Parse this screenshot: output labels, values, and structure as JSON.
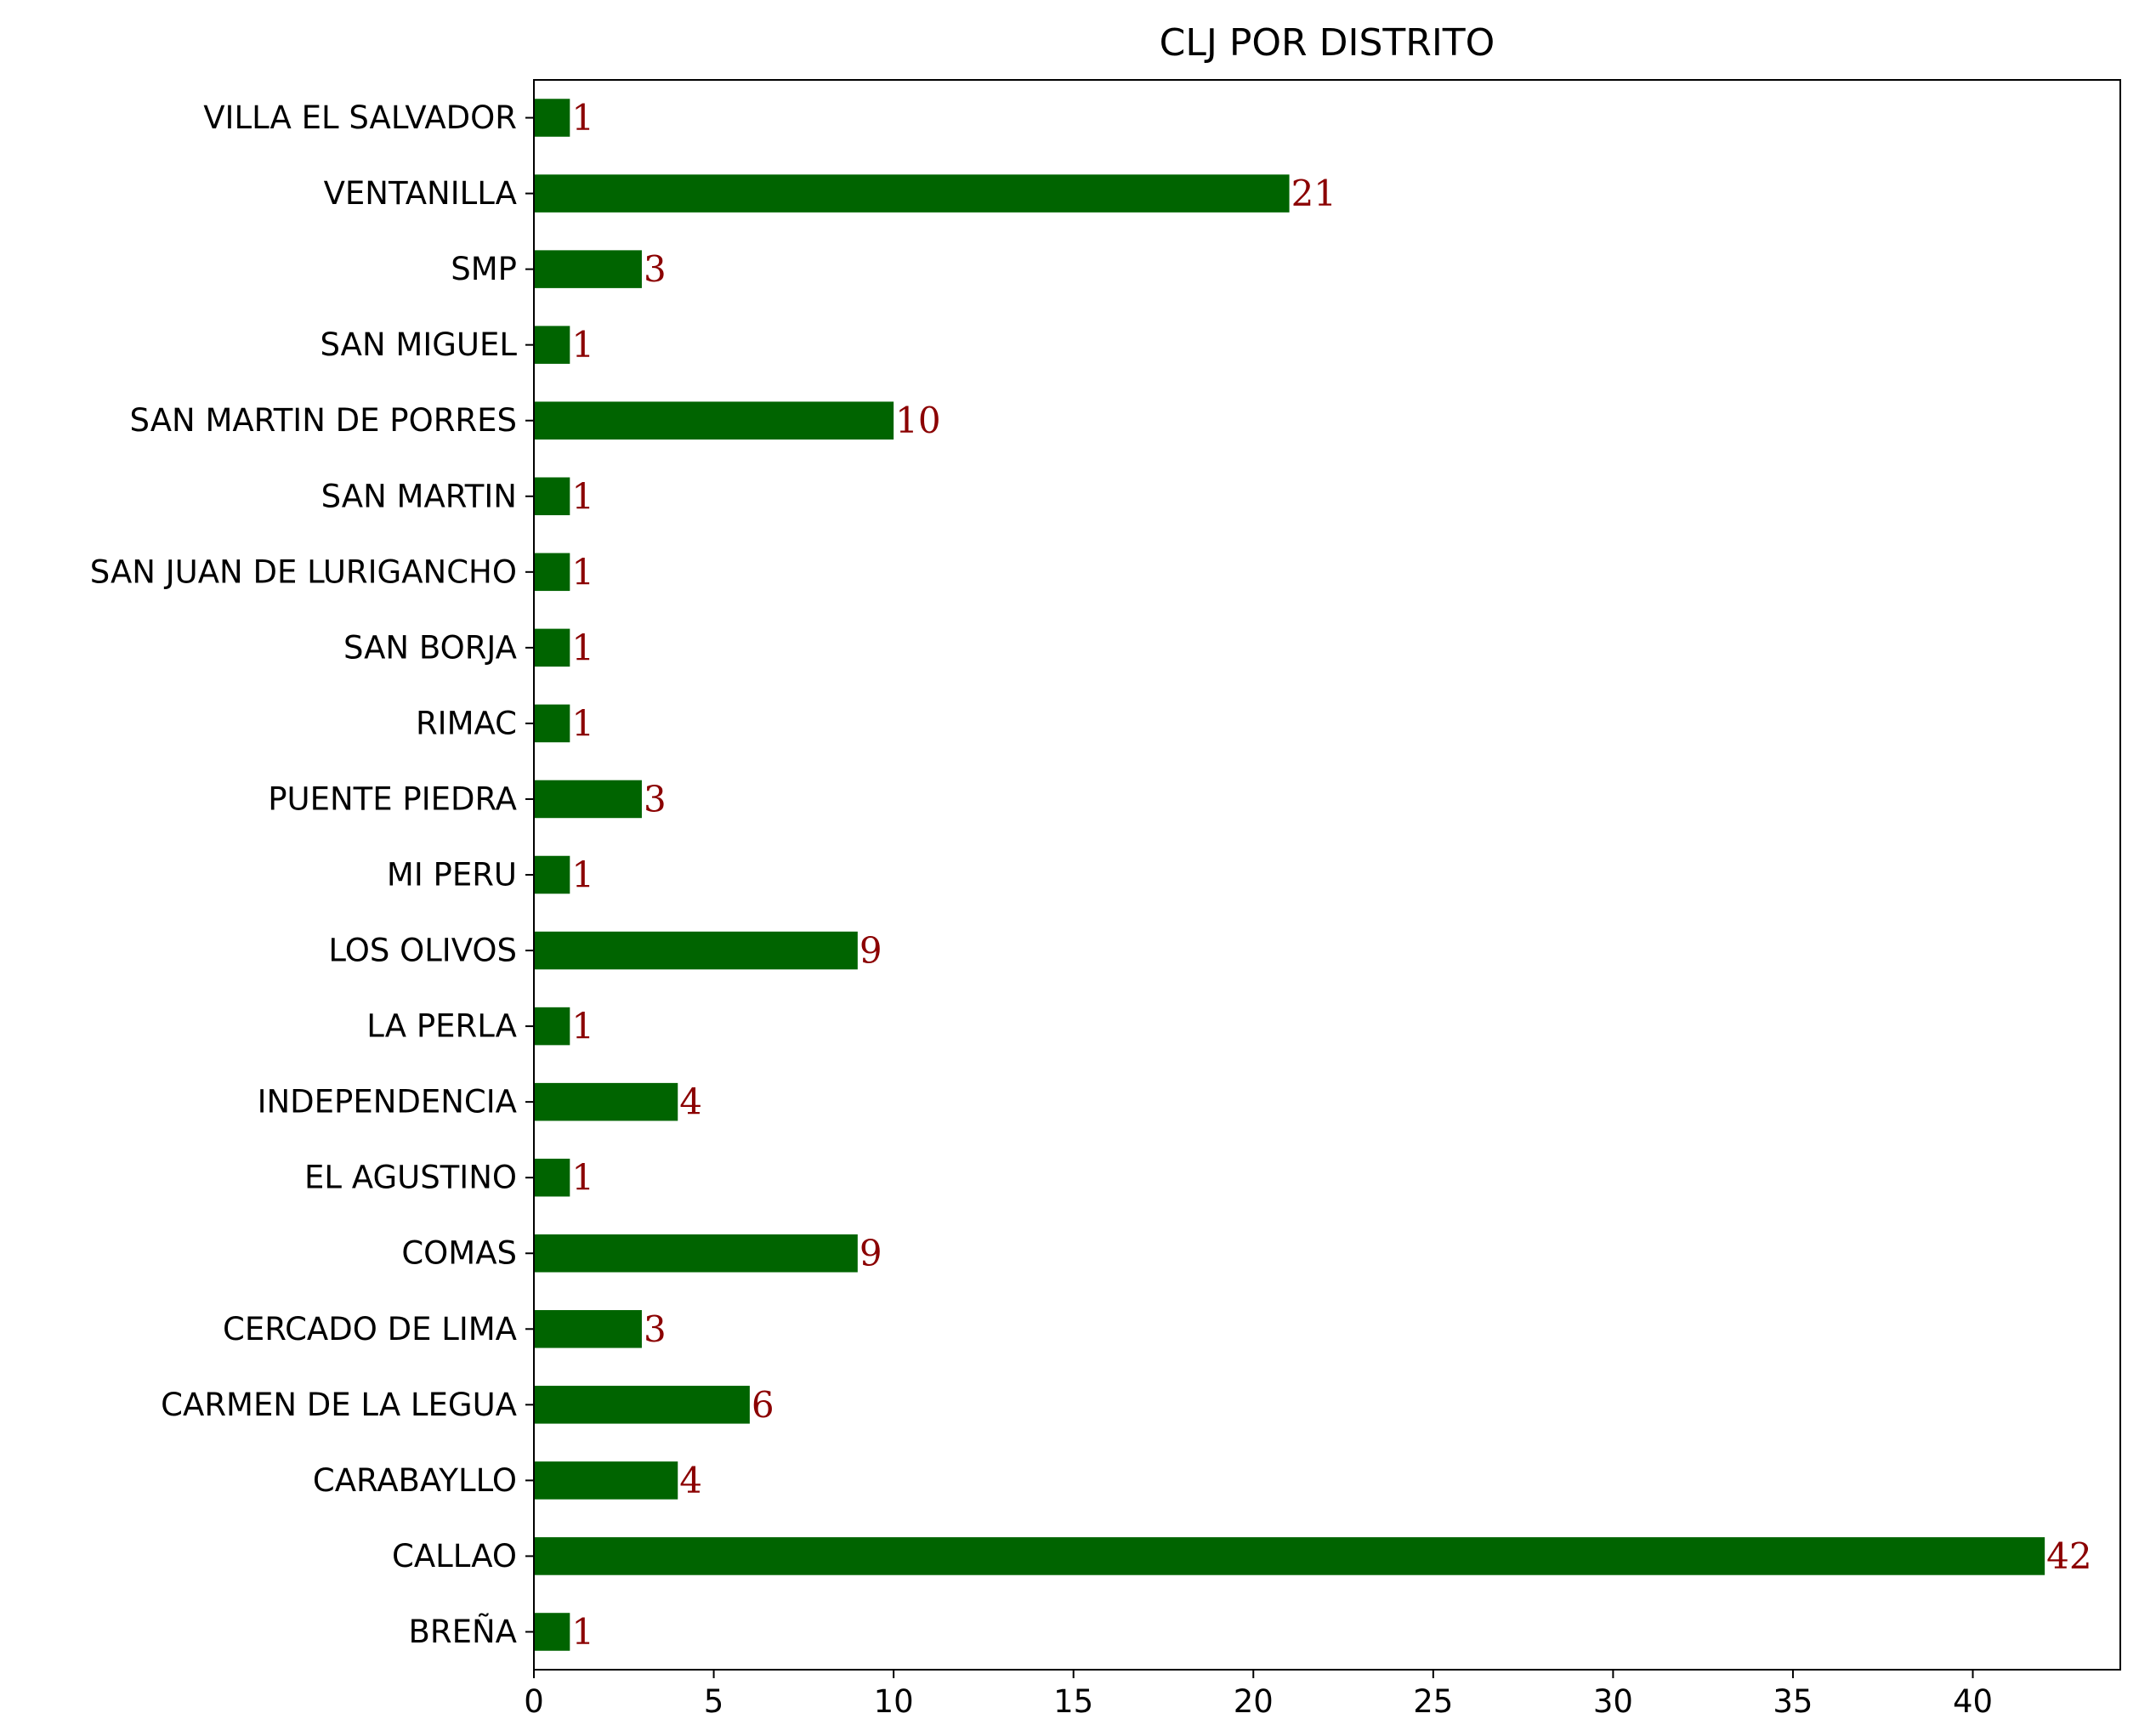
{
  "chart_data": {
    "type": "bar",
    "orientation": "horizontal",
    "title": "CLJ POR DISTRITO",
    "xlabel": "",
    "ylabel": "",
    "categories": [
      "BREÑA",
      "CALLAO",
      "CARABAYLLO",
      "CARMEN DE LA LEGUA",
      "CERCADO DE LIMA",
      "COMAS",
      "EL AGUSTINO",
      "INDEPENDENCIA",
      "LA PERLA",
      "LOS OLIVOS",
      "MI PERU",
      "PUENTE PIEDRA",
      "RIMAC",
      "SAN BORJA",
      "SAN JUAN DE LURIGANCHO",
      "SAN MARTIN",
      "SAN MARTIN DE PORRES",
      "SAN MIGUEL",
      "SMP",
      "VENTANILLA",
      "VILLA EL SALVADOR"
    ],
    "values": [
      1,
      42,
      4,
      6,
      3,
      9,
      1,
      4,
      1,
      9,
      1,
      3,
      1,
      1,
      1,
      1,
      10,
      1,
      3,
      21,
      1
    ],
    "xlim": [
      0,
      44.1
    ],
    "xticks": [
      0,
      5,
      10,
      15,
      20,
      25,
      30,
      35,
      40
    ],
    "grid": false,
    "legend": "none",
    "data_labels": true,
    "colors": {
      "bar": "#006400",
      "data_label": "#8b0000",
      "axis": "#000000"
    }
  }
}
